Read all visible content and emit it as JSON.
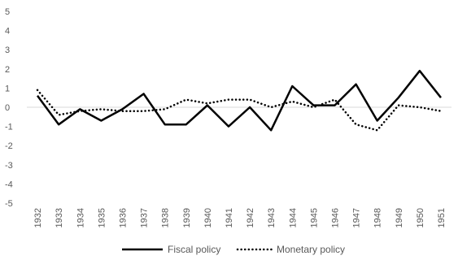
{
  "chart_data": {
    "type": "line",
    "title": "",
    "xlabel": "",
    "ylabel": "",
    "ylim": [
      -5,
      5
    ],
    "yticks": [
      "5",
      "4",
      "3",
      "2",
      "1",
      "0",
      "-1",
      "-2",
      "-3",
      "-4",
      "-5"
    ],
    "x": [
      "1932",
      "1933",
      "1934",
      "1935",
      "1936",
      "1937",
      "1938",
      "1939",
      "1940",
      "1941",
      "1942",
      "1943",
      "1944",
      "1945",
      "1946",
      "1947",
      "1948",
      "1949",
      "1950",
      "1951"
    ],
    "grid": false,
    "legend_position": "bottom",
    "series": [
      {
        "name": "Fiscal policy",
        "style": "solid",
        "color": "#000000",
        "values": [
          0.6,
          -0.9,
          -0.1,
          -0.7,
          -0.1,
          0.7,
          -0.9,
          -0.9,
          0.1,
          -1.0,
          0.0,
          -1.2,
          1.1,
          0.1,
          0.1,
          1.2,
          -0.7,
          0.5,
          1.9,
          0.5
        ]
      },
      {
        "name": "Monetary policy",
        "style": "dotted",
        "color": "#000000",
        "values": [
          0.9,
          -0.4,
          -0.2,
          -0.1,
          -0.2,
          -0.2,
          -0.1,
          0.4,
          0.2,
          0.4,
          0.4,
          0.0,
          0.3,
          0.0,
          0.4,
          -0.9,
          -1.2,
          0.1,
          0.0,
          -0.2
        ]
      }
    ]
  }
}
